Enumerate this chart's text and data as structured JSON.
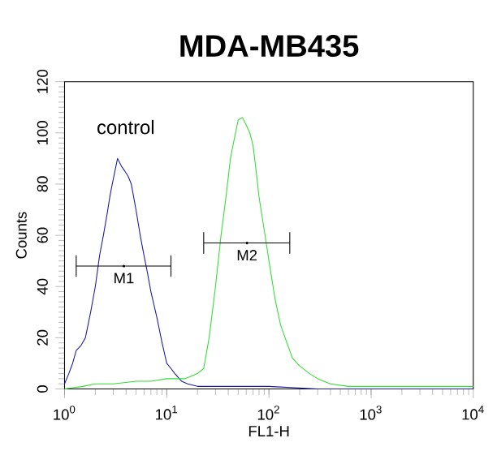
{
  "chart_data": {
    "type": "line",
    "title": "MDA-MB435",
    "xlabel": "FL1-H",
    "ylabel": "Counts",
    "log": "x",
    "xlim": [
      1,
      10000
    ],
    "xticks": [
      {
        "value": 1,
        "label": "10$^{0}$"
      },
      {
        "value": 10,
        "label": "10$^{1}$"
      },
      {
        "value": 100,
        "label": "10$^{2}$"
      },
      {
        "value": 1000,
        "label": "10$^{3}$"
      },
      {
        "value": 10000,
        "label": "10$^{4}$"
      }
    ],
    "ylim": [
      0,
      120
    ],
    "yticks": [
      0,
      20,
      40,
      60,
      80,
      100,
      120
    ],
    "series": [
      {
        "color": "#1a1aa0",
        "x": [
          1,
          1.1,
          1.2,
          1.3,
          1.45,
          1.6,
          1.8,
          2,
          2.2,
          2.4,
          2.6,
          2.8,
          3.0,
          3.3,
          3.6,
          3.9,
          4.2,
          4.5,
          5,
          5.5,
          6,
          6.5,
          7,
          8,
          9,
          10,
          11,
          12,
          14,
          16,
          20,
          30,
          50,
          100,
          300,
          1000,
          3000,
          10000
        ],
        "values": [
          2,
          6,
          10,
          15,
          17,
          20,
          30,
          40,
          52,
          60,
          68,
          76,
          82,
          90,
          87,
          85,
          83,
          80,
          70,
          60,
          52,
          45,
          38,
          28,
          18,
          10,
          8,
          6,
          3,
          2,
          1,
          1,
          1,
          1,
          0,
          0,
          0,
          0
        ]
      },
      {
        "color": "#33dd33",
        "x": [
          1,
          1.5,
          2,
          3,
          5,
          7,
          10,
          15,
          20,
          23,
          26,
          30,
          34,
          38,
          42,
          46,
          50,
          55,
          60,
          65,
          70,
          75,
          80,
          90,
          100,
          115,
          130,
          150,
          170,
          200,
          250,
          300,
          400,
          600,
          1000,
          3000,
          10000
        ],
        "values": [
          0,
          1,
          2,
          2,
          3,
          3,
          4,
          4,
          6,
          8,
          20,
          40,
          60,
          75,
          90,
          98,
          105,
          106,
          103,
          100,
          95,
          85,
          75,
          62,
          50,
          35,
          25,
          18,
          12,
          9,
          6,
          4,
          2,
          1,
          1,
          1,
          1
        ]
      },
      {
        "type": "scatter",
        "marker": "none",
        "color": "#000000",
        "x": [
          3.8
        ],
        "values": [
          48
        ],
        "xerrors": [
          [
            1.3,
            11
          ]
        ]
      },
      {
        "type": "scatter",
        "marker": "none",
        "color": "#000000",
        "x": [
          61
        ],
        "values": [
          57
        ],
        "xerrors": [
          [
            23,
            160
          ]
        ]
      }
    ],
    "annotations": [
      "control",
      {
        "text": "M1",
        "x": 3.8,
        "y": 48
      },
      {
        "text": "M2",
        "x": 61,
        "y": 57
      }
    ]
  }
}
